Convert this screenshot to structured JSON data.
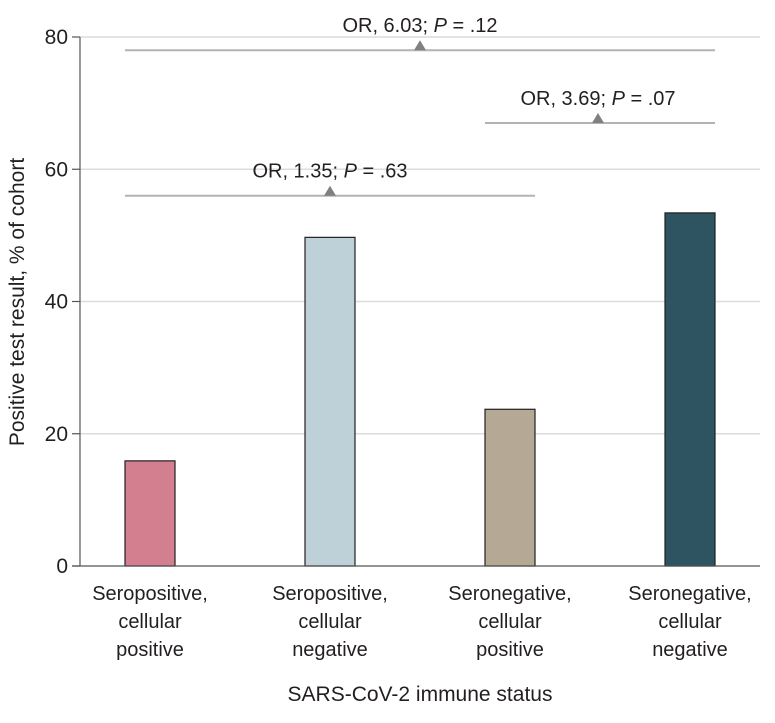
{
  "chart_data": {
    "type": "bar",
    "title": "",
    "xlabel": "SARS-CoV-2 immune status",
    "ylabel": "Positive test result, % of cohort",
    "ylim": [
      0,
      80
    ],
    "yticks": [
      0,
      20,
      40,
      60,
      80
    ],
    "grid": true,
    "categories": [
      [
        "Seropositive,",
        "cellular",
        "positive"
      ],
      [
        "Seropositive,",
        "cellular",
        "negative"
      ],
      [
        "Seronegative,",
        "cellular",
        "positive"
      ],
      [
        "Seronegative,",
        "cellular",
        "negative"
      ]
    ],
    "values": [
      15.9,
      49.7,
      23.7,
      53.4
    ],
    "colors": [
      "#d47f8f",
      "#bed1d9",
      "#b5a995",
      "#2e5462"
    ],
    "annotations": [
      {
        "from": 0,
        "to": 1,
        "y": 56,
        "or": "1.35",
        "p": ".63",
        "label_prefix": "OR, 1.35; ",
        "label_p": "P",
        "label_suffix": " = .63"
      },
      {
        "from": 0,
        "to": 3,
        "y": 78,
        "or": "6.03",
        "p": ".12",
        "label_prefix": "OR, 6.03; ",
        "label_p": "P",
        "label_suffix": " = .12"
      },
      {
        "from": 2,
        "to": 3,
        "y": 67,
        "or": "3.69",
        "p": ".07",
        "label_prefix": "OR, 3.69; ",
        "label_p": "P",
        "label_suffix": " = .07"
      }
    ]
  }
}
